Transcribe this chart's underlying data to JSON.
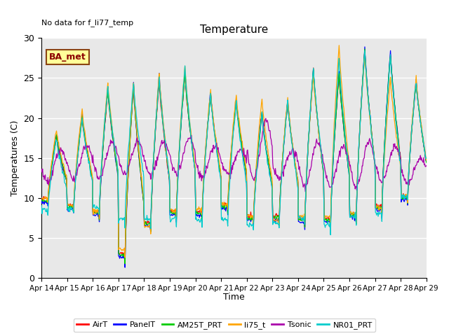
{
  "title": "Temperature",
  "ylabel": "Temperatures (C)",
  "xlabel": "Time",
  "annotation": "No data for f_li77_temp",
  "legend_box_label": "BA_met",
  "ylim": [
    0,
    30
  ],
  "bg_color": "#e8e8e8",
  "fig_color": "#ffffff",
  "grid_color": "#ffffff",
  "xtick_labels": [
    "Apr 14",
    "Apr 15",
    "Apr 16",
    "Apr 17",
    "Apr 18",
    "Apr 19",
    "Apr 20",
    "Apr 21",
    "Apr 22",
    "Apr 23",
    "Apr 24",
    "Apr 25",
    "Apr 26",
    "Apr 27",
    "Apr 28",
    "Apr 29"
  ],
  "ytick_labels": [
    0,
    5,
    10,
    15,
    20,
    25,
    30
  ],
  "series_AirT_color": "#ff0000",
  "series_PanelT_color": "#0000ff",
  "series_AM25T_color": "#00cc00",
  "series_li75_color": "#ffa500",
  "series_Tsonic_color": "#aa00aa",
  "series_NR01_color": "#00cccc",
  "lw": 0.9,
  "n_days": 15,
  "n_per_day": 48,
  "day_max_air": [
    17.5,
    20.0,
    23.5,
    24.0,
    24.5,
    25.5,
    23.0,
    22.0,
    20.5,
    22.0,
    26.0,
    25.5,
    28.5,
    28.0,
    24.5
  ],
  "day_min_air": [
    9.5,
    8.5,
    7.5,
    2.0,
    6.0,
    7.5,
    7.5,
    8.5,
    7.0,
    7.0,
    6.5,
    6.5,
    7.0,
    8.0,
    9.5
  ],
  "day_max_panel": [
    18.0,
    20.5,
    23.8,
    24.2,
    25.5,
    25.8,
    23.3,
    22.3,
    20.8,
    22.3,
    26.2,
    25.8,
    28.8,
    28.3,
    24.8
  ],
  "day_min_panel": [
    9.0,
    8.0,
    7.0,
    1.5,
    5.5,
    7.0,
    7.0,
    8.0,
    6.5,
    6.5,
    6.0,
    6.0,
    6.5,
    7.5,
    9.0
  ],
  "day_max_am25": [
    17.8,
    20.2,
    23.6,
    24.1,
    25.0,
    25.6,
    23.1,
    22.1,
    20.6,
    22.1,
    26.1,
    25.6,
    28.6,
    28.1,
    24.6
  ],
  "day_min_am25": [
    9.3,
    8.3,
    7.3,
    1.8,
    5.8,
    7.3,
    7.3,
    8.3,
    6.8,
    6.8,
    6.3,
    6.3,
    6.8,
    7.8,
    9.3
  ],
  "day_max_li75": [
    18.5,
    21.0,
    24.5,
    24.5,
    25.8,
    26.5,
    23.5,
    23.0,
    22.5,
    22.5,
    25.5,
    29.0,
    28.0,
    25.0,
    25.0
  ],
  "day_min_li75": [
    9.5,
    8.5,
    7.5,
    2.5,
    5.5,
    7.5,
    7.8,
    8.5,
    7.0,
    6.5,
    6.8,
    6.5,
    7.0,
    8.0,
    9.5
  ],
  "day_max_tsonic": [
    16.0,
    16.5,
    17.0,
    17.0,
    17.0,
    17.5,
    16.5,
    16.0,
    19.5,
    16.0,
    17.0,
    16.5,
    17.0,
    16.5,
    15.0
  ],
  "day_min_tsonic": [
    12.0,
    12.5,
    12.5,
    13.0,
    13.0,
    13.0,
    12.5,
    13.0,
    12.5,
    12.5,
    11.5,
    11.5,
    11.5,
    12.0,
    12.0
  ],
  "day_max_nr01": [
    17.5,
    20.0,
    24.0,
    24.5,
    25.0,
    26.5,
    23.0,
    22.0,
    20.5,
    22.0,
    26.5,
    27.5,
    28.5,
    28.0,
    24.5
  ],
  "day_min_nr01": [
    8.0,
    8.0,
    8.0,
    6.5,
    6.5,
    6.5,
    6.5,
    6.5,
    6.0,
    6.0,
    6.5,
    5.5,
    6.5,
    7.0,
    9.5
  ]
}
